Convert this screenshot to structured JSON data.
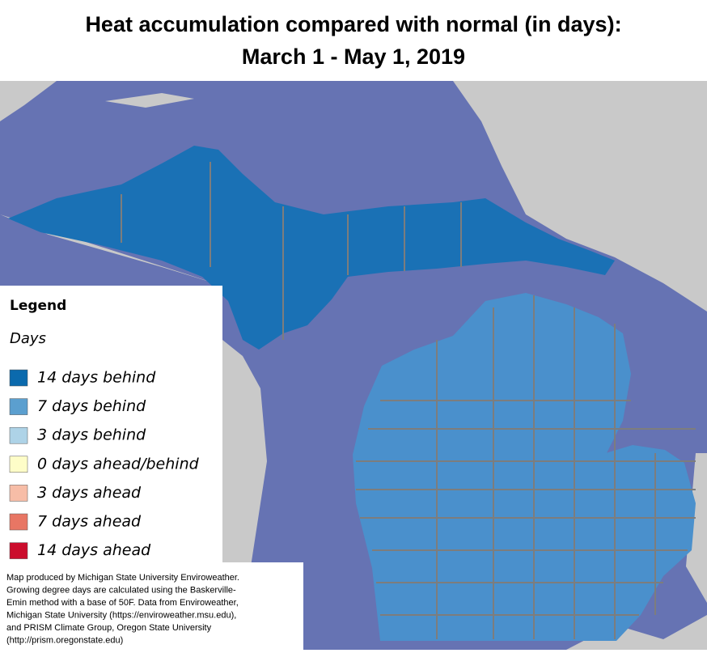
{
  "title": {
    "lines": [
      "Heat accumulation compared with normal (in days):",
      "March 1 - May 1, 2019"
    ]
  },
  "legend": {
    "heading": "Legend",
    "subheading": "Days",
    "items": [
      {
        "label": "14 days behind",
        "color": "#0b6aad"
      },
      {
        "label": "7 days behind",
        "color": "#5b9fcf"
      },
      {
        "label": "3 days behind",
        "color": "#aed3e7"
      },
      {
        "label": "0 days ahead/behind",
        "color": "#fefdc8"
      },
      {
        "label": "3 days ahead",
        "color": "#f7bda7"
      },
      {
        "label": "7 days ahead",
        "color": "#e87664"
      },
      {
        "label": "14 days ahead",
        "color": "#cb0c2c"
      }
    ]
  },
  "credits": {
    "lines": [
      "Map produced by Michigan State University Enviroweather.",
      "Growing degree days are calculated using the Baskerville-",
      "Emin method with a base of 50F.  Data from Enviroweather,",
      "Michigan State University (https://enviroweather.msu.edu),",
      "and PRISM Climate Group, Oregon State University",
      "(http://prism.oregonstate.edu)"
    ]
  }
}
